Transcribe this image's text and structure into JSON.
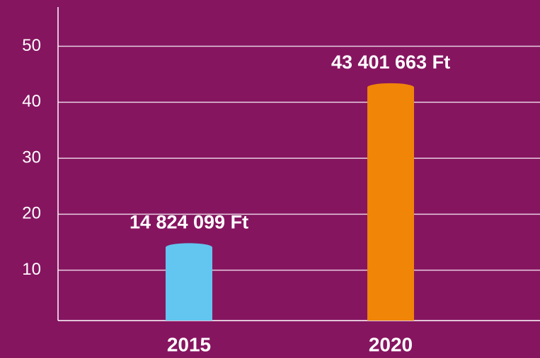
{
  "chart_data": {
    "type": "bar",
    "categories": [
      "2015",
      "2020"
    ],
    "values": [
      14.824099,
      43.401663
    ],
    "value_labels": [
      "14 824 099 Ft",
      "43 401 663 Ft"
    ],
    "colors": [
      "#62c6f0",
      "#f08508"
    ],
    "ylim": [
      1,
      57
    ],
    "yticks": [
      10,
      20,
      30,
      40,
      50
    ],
    "grid": true
  }
}
